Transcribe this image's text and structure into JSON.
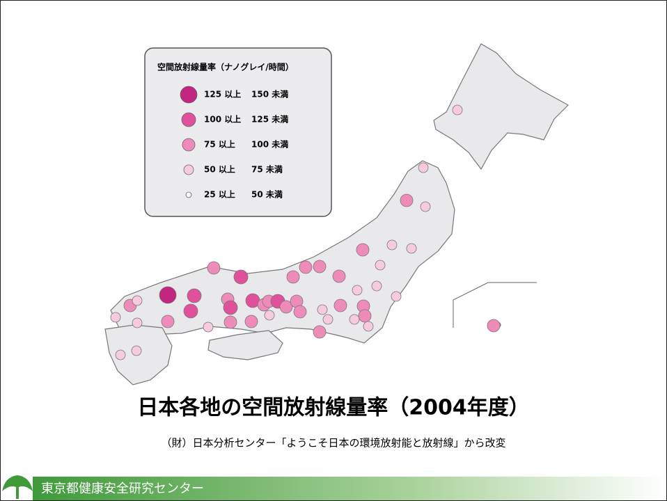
{
  "legend": {
    "title": "空間放射線量率（ナノグレイ/時間）",
    "items": [
      {
        "from": "125 以上",
        "to": "150 未満"
      },
      {
        "from": "100 以上",
        "to": "125 未満"
      },
      {
        "from": "75 以上",
        "to": "100 未満"
      },
      {
        "from": "50 以上",
        "to": "75 未満"
      },
      {
        "from": "25 以上",
        "to": "50 未満"
      }
    ]
  },
  "title": "日本各地の空間放射線量率（2004年度）",
  "source": "（財）日本分析センター「ようこそ日本の環境放射能と放射線」から改変",
  "footer": {
    "organization": "東京都健康安全研究センター"
  }
}
